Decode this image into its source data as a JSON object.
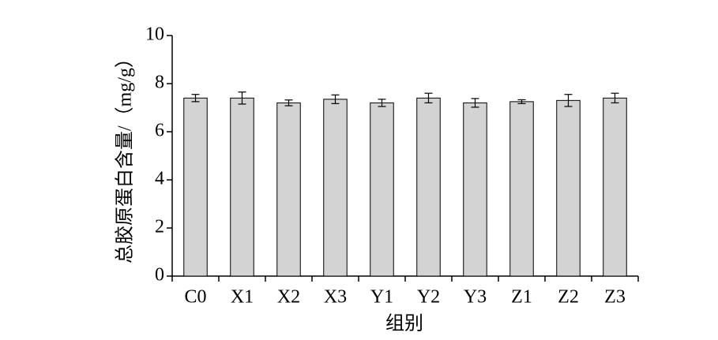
{
  "chart_data": {
    "type": "bar",
    "x_label": "组别",
    "y_label": "总胶原蛋白含量/（mg/g）",
    "categories": [
      "C0",
      "X1",
      "X2",
      "X3",
      "Y1",
      "Y2",
      "Y3",
      "Z1",
      "Z2",
      "Z3"
    ],
    "values": [
      7.4,
      7.4,
      7.2,
      7.35,
      7.2,
      7.4,
      7.2,
      7.25,
      7.3,
      7.4
    ],
    "errors": [
      0.15,
      0.25,
      0.12,
      0.18,
      0.15,
      0.2,
      0.18,
      0.08,
      0.25,
      0.2
    ],
    "color": "#d3d3d3",
    "ylim": [
      0,
      10
    ],
    "yticks": [
      0,
      2,
      4,
      6,
      8,
      10
    ],
    "grid": false
  }
}
